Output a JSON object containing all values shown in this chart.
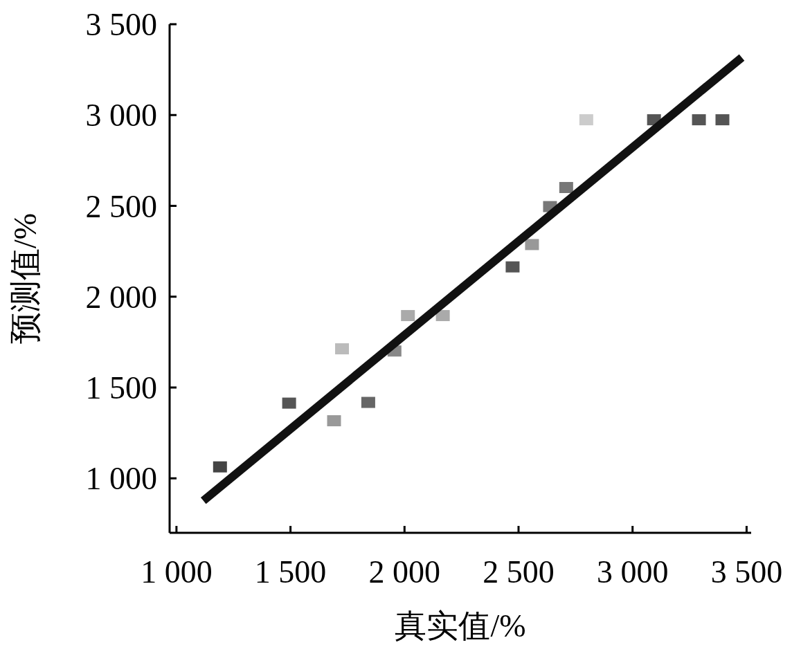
{
  "chart_data": {
    "type": "scatter",
    "xlabel": "真实值/%",
    "ylabel": "预测值/%",
    "xlim": [
      970,
      3520
    ],
    "ylim": [
      700,
      3500
    ],
    "xticks": [
      {
        "value": 1000,
        "label": "1 000"
      },
      {
        "value": 1500,
        "label": "1 500"
      },
      {
        "value": 2000,
        "label": "2 000"
      },
      {
        "value": 2500,
        "label": "2 500"
      },
      {
        "value": 3000,
        "label": "3 000"
      },
      {
        "value": 3500,
        "label": "3 500"
      }
    ],
    "yticks": [
      {
        "value": 1000,
        "label": "1 000"
      },
      {
        "value": 1500,
        "label": "1 500"
      },
      {
        "value": 2000,
        "label": "2 000"
      },
      {
        "value": 2500,
        "label": "2 500"
      },
      {
        "value": 3000,
        "label": "3 000"
      },
      {
        "value": 3500,
        "label": "3 500"
      }
    ],
    "grid": false,
    "series": [
      {
        "marker": "square",
        "x": [
          1191,
          1494,
          1691,
          1726,
          1841,
          1956,
          2015,
          2168,
          2474,
          2559,
          2638,
          2709,
          2797,
          3094,
          3291,
          3394
        ],
        "values": [
          1063,
          1414,
          1317,
          1713,
          1418,
          1701,
          1896,
          1896,
          2164,
          2287,
          2496,
          2601,
          2974,
          2974,
          2974,
          2974
        ],
        "colors": [
          "#444444",
          "#555555",
          "#999999",
          "#bbbbbb",
          "#666666",
          "#888888",
          "#aaaaaa",
          "#aaaaaa",
          "#555555",
          "#999999",
          "#777777",
          "#777777",
          "#cccccc",
          "#555555",
          "#555555",
          "#555555"
        ]
      },
      {
        "type": "line",
        "x": [
          1118,
          3479
        ],
        "values": [
          877,
          3317
        ],
        "color": "#111111"
      }
    ]
  }
}
